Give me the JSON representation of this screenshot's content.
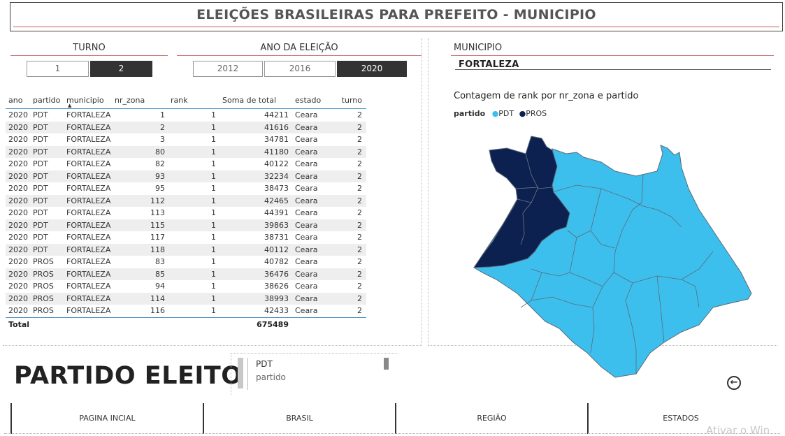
{
  "header": {
    "title": "ELEIÇÕES BRASILEIRAS PARA PREFEITO - MUNICIPIO"
  },
  "turno": {
    "label": "TURNO",
    "options": [
      "1",
      "2"
    ],
    "selected": "2"
  },
  "ano": {
    "label": "ANO DA ELEIÇÃO",
    "options": [
      "2012",
      "2016",
      "2020"
    ],
    "selected": "2020"
  },
  "municipio": {
    "label": "MUNICIPIO",
    "value": "FORTALEZA"
  },
  "table": {
    "columns": [
      "ano",
      "partido",
      "municipio",
      "nr_zona",
      "rank",
      "Soma de total",
      "estado",
      "turno"
    ],
    "rows": [
      [
        "2020",
        "PDT",
        "FORTALEZA",
        "1",
        "1",
        "44211",
        "Ceara",
        "2"
      ],
      [
        "2020",
        "PDT",
        "FORTALEZA",
        "2",
        "1",
        "41616",
        "Ceara",
        "2"
      ],
      [
        "2020",
        "PDT",
        "FORTALEZA",
        "3",
        "1",
        "34781",
        "Ceara",
        "2"
      ],
      [
        "2020",
        "PDT",
        "FORTALEZA",
        "80",
        "1",
        "41180",
        "Ceara",
        "2"
      ],
      [
        "2020",
        "PDT",
        "FORTALEZA",
        "82",
        "1",
        "40122",
        "Ceara",
        "2"
      ],
      [
        "2020",
        "PDT",
        "FORTALEZA",
        "93",
        "1",
        "32234",
        "Ceara",
        "2"
      ],
      [
        "2020",
        "PDT",
        "FORTALEZA",
        "95",
        "1",
        "38473",
        "Ceara",
        "2"
      ],
      [
        "2020",
        "PDT",
        "FORTALEZA",
        "112",
        "1",
        "42465",
        "Ceara",
        "2"
      ],
      [
        "2020",
        "PDT",
        "FORTALEZA",
        "113",
        "1",
        "44391",
        "Ceara",
        "2"
      ],
      [
        "2020",
        "PDT",
        "FORTALEZA",
        "115",
        "1",
        "39863",
        "Ceara",
        "2"
      ],
      [
        "2020",
        "PDT",
        "FORTALEZA",
        "117",
        "1",
        "38731",
        "Ceara",
        "2"
      ],
      [
        "2020",
        "PDT",
        "FORTALEZA",
        "118",
        "1",
        "40112",
        "Ceara",
        "2"
      ],
      [
        "2020",
        "PROS",
        "FORTALEZA",
        "83",
        "1",
        "40782",
        "Ceara",
        "2"
      ],
      [
        "2020",
        "PROS",
        "FORTALEZA",
        "85",
        "1",
        "36476",
        "Ceara",
        "2"
      ],
      [
        "2020",
        "PROS",
        "FORTALEZA",
        "94",
        "1",
        "38626",
        "Ceara",
        "2"
      ],
      [
        "2020",
        "PROS",
        "FORTALEZA",
        "114",
        "1",
        "38993",
        "Ceara",
        "2"
      ],
      [
        "2020",
        "PROS",
        "FORTALEZA",
        "116",
        "1",
        "42433",
        "Ceara",
        "2"
      ]
    ],
    "total_label": "Total",
    "total_value": "675489"
  },
  "map": {
    "title": "Contagem de rank por nr_zona e partido",
    "legend_title": "partido",
    "legend": [
      {
        "name": "PDT",
        "color": "#3dbfee"
      },
      {
        "name": "PROS",
        "color": "#0c2150"
      }
    ]
  },
  "card": {
    "heading": "PARTIDO ELEITO",
    "value": "PDT",
    "caption": "partido"
  },
  "back_button": {
    "icon": "back-arrow-icon"
  },
  "nav": [
    "PAGINA INCIAL",
    "BRASIL",
    "REGIÃO",
    "ESTADOS"
  ],
  "watermark": "Ativar o Win"
}
